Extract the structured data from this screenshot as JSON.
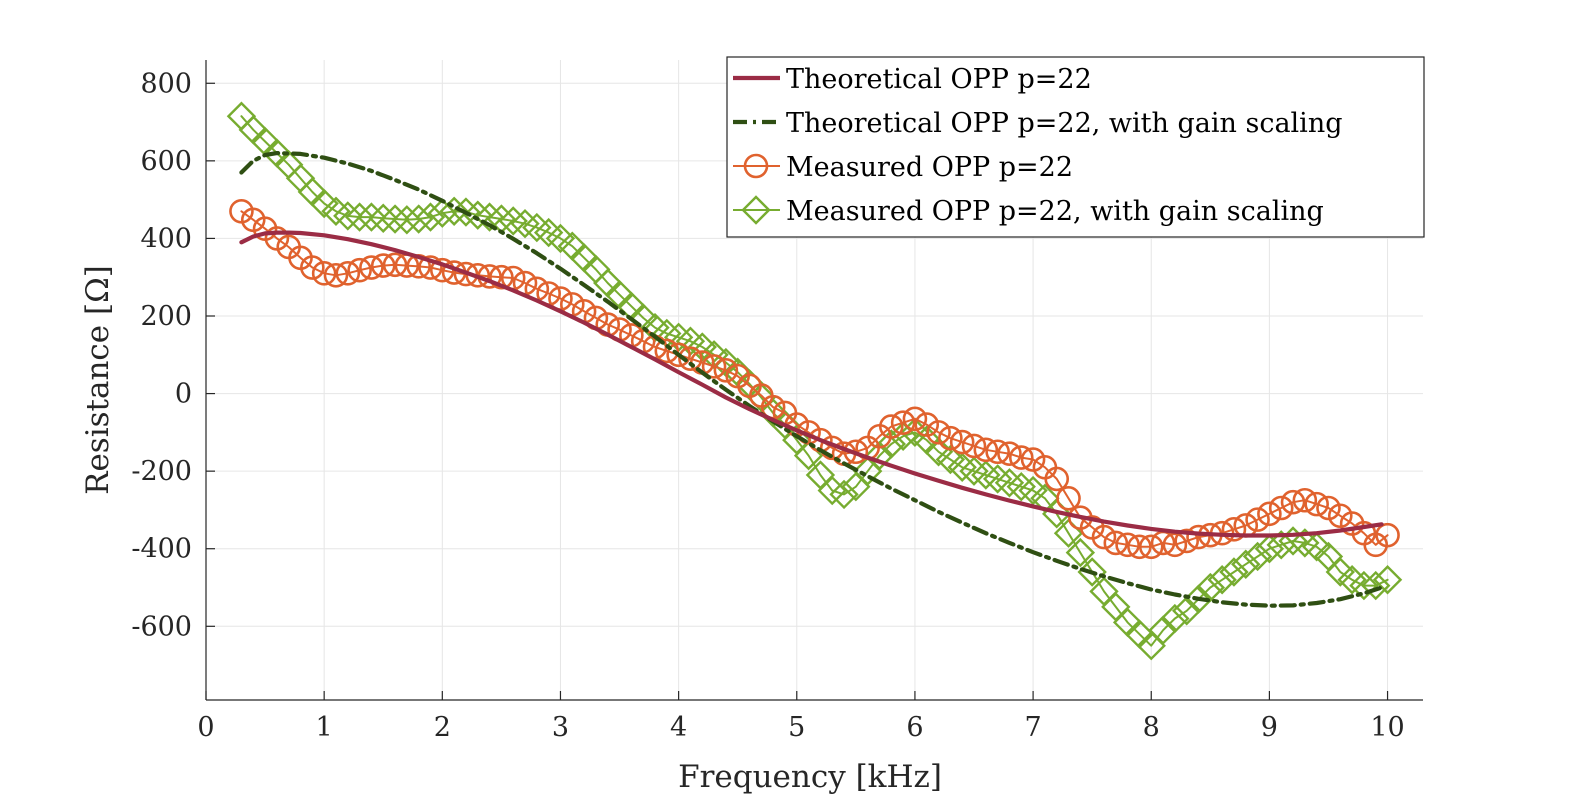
{
  "chart_data": {
    "type": "line",
    "title": "",
    "xlabel": "Frequency [kHz]",
    "ylabel": "Resistance [Ω]",
    "xlim": [
      0,
      10.3
    ],
    "ylim": [
      -790,
      860
    ],
    "xticks": [
      0,
      1,
      2,
      3,
      4,
      5,
      6,
      7,
      8,
      9,
      10
    ],
    "xtick_labels": [
      "0",
      "1",
      "2",
      "3",
      "4",
      "5",
      "6",
      "7",
      "8",
      "9",
      "10"
    ],
    "yticks": [
      -600,
      -400,
      -200,
      0,
      200,
      400,
      600,
      800
    ],
    "ytick_labels": [
      "-600",
      "-400",
      "-200",
      "0",
      "200",
      "400",
      "600",
      "800"
    ],
    "grid": true,
    "legend_position": "top-right",
    "series": [
      {
        "name": "Theoretical OPP p=22",
        "style": "solid",
        "marker": "none",
        "color": "#9b2c45",
        "x": [
          0.3,
          0.4,
          0.5,
          0.6,
          0.7,
          0.8,
          1.0,
          1.2,
          1.4,
          1.6,
          1.8,
          2.0,
          2.2,
          2.4,
          2.6,
          2.8,
          3.0,
          3.2,
          3.4,
          3.6,
          3.8,
          4.0,
          4.2,
          4.4,
          4.6,
          4.8,
          5.0,
          5.2,
          5.4,
          5.6,
          5.8,
          6.0,
          6.2,
          6.4,
          6.6,
          6.8,
          7.0,
          7.2,
          7.4,
          7.6,
          7.8,
          8.0,
          8.2,
          8.4,
          8.6,
          8.8,
          9.0,
          9.2,
          9.4,
          9.6,
          9.8,
          9.95
        ],
        "y": [
          390,
          405,
          413,
          415,
          415,
          414,
          408,
          398,
          385,
          370,
          352,
          333,
          312,
          290,
          266,
          240,
          212,
          183,
          152,
          120,
          88,
          55,
          23,
          -10,
          -40,
          -68,
          -95,
          -120,
          -143,
          -165,
          -186,
          -206,
          -225,
          -243,
          -260,
          -276,
          -291,
          -305,
          -318,
          -330,
          -340,
          -349,
          -356,
          -361,
          -364,
          -366,
          -366,
          -364,
          -360,
          -353,
          -344,
          -337
        ]
      },
      {
        "name": "Theoretical OPP p=22, with gain scaling",
        "style": "dashdot",
        "marker": "none",
        "color": "#2f4f13",
        "x": [
          0.3,
          0.4,
          0.5,
          0.6,
          0.8,
          1.0,
          1.2,
          1.4,
          1.6,
          1.8,
          2.0,
          2.2,
          2.4,
          2.6,
          2.8,
          3.0,
          3.2,
          3.4,
          3.6,
          3.8,
          4.0,
          4.2,
          4.4,
          4.6,
          4.8,
          5.0,
          5.2,
          5.4,
          5.6,
          5.8,
          6.0,
          6.2,
          6.4,
          6.6,
          6.8,
          7.0,
          7.2,
          7.4,
          7.6,
          7.8,
          8.0,
          8.2,
          8.4,
          8.6,
          8.8,
          9.0,
          9.2,
          9.4,
          9.6,
          9.8,
          9.95
        ],
        "y": [
          570,
          600,
          615,
          620,
          618,
          608,
          593,
          574,
          551,
          526,
          497,
          466,
          434,
          399,
          362,
          322,
          280,
          237,
          192,
          147,
          100,
          54,
          10,
          -32,
          -72,
          -110,
          -146,
          -180,
          -213,
          -245,
          -275,
          -305,
          -333,
          -360,
          -385,
          -409,
          -431,
          -452,
          -471,
          -489,
          -505,
          -518,
          -529,
          -538,
          -544,
          -547,
          -546,
          -540,
          -530,
          -515,
          -500
        ]
      },
      {
        "name": "Measured OPP p=22",
        "style": "solid",
        "marker": "circle",
        "color": "#e0622e",
        "x": [
          0.3,
          0.4,
          0.5,
          0.6,
          0.7,
          0.8,
          0.9,
          1.0,
          1.1,
          1.2,
          1.3,
          1.4,
          1.5,
          1.6,
          1.7,
          1.8,
          1.9,
          2.0,
          2.1,
          2.2,
          2.3,
          2.4,
          2.5,
          2.6,
          2.7,
          2.8,
          2.9,
          3.0,
          3.1,
          3.2,
          3.3,
          3.4,
          3.5,
          3.6,
          3.7,
          3.8,
          3.9,
          4.0,
          4.1,
          4.2,
          4.3,
          4.4,
          4.5,
          4.6,
          4.7,
          4.8,
          4.9,
          5.0,
          5.1,
          5.2,
          5.3,
          5.4,
          5.5,
          5.6,
          5.7,
          5.8,
          5.9,
          6.0,
          6.1,
          6.2,
          6.3,
          6.4,
          6.5,
          6.6,
          6.7,
          6.8,
          6.9,
          7.0,
          7.1,
          7.2,
          7.3,
          7.4,
          7.5,
          7.6,
          7.7,
          7.8,
          7.9,
          8.0,
          8.1,
          8.2,
          8.3,
          8.4,
          8.5,
          8.6,
          8.7,
          8.8,
          8.9,
          9.0,
          9.1,
          9.2,
          9.3,
          9.4,
          9.5,
          9.6,
          9.7,
          9.8,
          9.9,
          10.0
        ],
        "y": [
          470,
          448,
          425,
          400,
          378,
          350,
          325,
          310,
          305,
          310,
          318,
          325,
          330,
          332,
          330,
          328,
          325,
          318,
          312,
          308,
          305,
          302,
          300,
          298,
          285,
          270,
          258,
          245,
          230,
          212,
          195,
          178,
          165,
          150,
          135,
          120,
          110,
          100,
          90,
          80,
          70,
          60,
          45,
          20,
          -5,
          -35,
          -50,
          -80,
          -100,
          -120,
          -140,
          -155,
          -150,
          -140,
          -110,
          -85,
          -75,
          -65,
          -80,
          -100,
          -115,
          -125,
          -135,
          -145,
          -150,
          -155,
          -165,
          -170,
          -190,
          -220,
          -270,
          -320,
          -345,
          -370,
          -385,
          -390,
          -395,
          -395,
          -385,
          -390,
          -380,
          -370,
          -365,
          -360,
          -350,
          -340,
          -325,
          -310,
          -295,
          -280,
          -275,
          -285,
          -295,
          -315,
          -335,
          -360,
          -390,
          -365
        ]
      },
      {
        "name": "Measured OPP p=22, with gain scaling",
        "style": "solid",
        "marker": "diamond",
        "color": "#77ac30",
        "x": [
          0.3,
          0.4,
          0.5,
          0.6,
          0.7,
          0.8,
          0.9,
          1.0,
          1.1,
          1.2,
          1.3,
          1.4,
          1.5,
          1.6,
          1.7,
          1.8,
          1.9,
          2.0,
          2.1,
          2.2,
          2.3,
          2.4,
          2.5,
          2.6,
          2.7,
          2.8,
          2.9,
          3.0,
          3.1,
          3.2,
          3.3,
          3.4,
          3.5,
          3.6,
          3.7,
          3.8,
          3.9,
          4.0,
          4.1,
          4.2,
          4.3,
          4.4,
          4.5,
          4.6,
          4.7,
          4.8,
          4.9,
          5.0,
          5.1,
          5.2,
          5.3,
          5.4,
          5.5,
          5.6,
          5.7,
          5.8,
          5.9,
          6.0,
          6.1,
          6.2,
          6.3,
          6.4,
          6.5,
          6.6,
          6.7,
          6.8,
          6.9,
          7.0,
          7.1,
          7.2,
          7.3,
          7.4,
          7.5,
          7.6,
          7.7,
          7.8,
          7.9,
          8.0,
          8.1,
          8.2,
          8.3,
          8.4,
          8.5,
          8.6,
          8.7,
          8.8,
          8.9,
          9.0,
          9.1,
          9.2,
          9.3,
          9.4,
          9.5,
          9.6,
          9.7,
          9.8,
          9.9,
          10.0
        ],
        "y": [
          715,
          680,
          650,
          620,
          590,
          555,
          520,
          490,
          470,
          458,
          455,
          455,
          452,
          450,
          448,
          450,
          455,
          465,
          470,
          468,
          460,
          455,
          450,
          445,
          438,
          428,
          415,
          400,
          380,
          350,
          320,
          285,
          255,
          225,
          195,
          170,
          155,
          145,
          135,
          120,
          100,
          80,
          55,
          25,
          -10,
          -50,
          -80,
          -120,
          -160,
          -210,
          -250,
          -260,
          -240,
          -200,
          -160,
          -130,
          -110,
          -100,
          -120,
          -150,
          -170,
          -190,
          -200,
          -210,
          -220,
          -230,
          -240,
          -250,
          -270,
          -310,
          -360,
          -410,
          -460,
          -510,
          -550,
          -590,
          -620,
          -650,
          -610,
          -580,
          -560,
          -530,
          -500,
          -480,
          -460,
          -440,
          -420,
          -400,
          -390,
          -380,
          -385,
          -395,
          -420,
          -460,
          -480,
          -495,
          -495,
          -480
        ]
      }
    ]
  }
}
